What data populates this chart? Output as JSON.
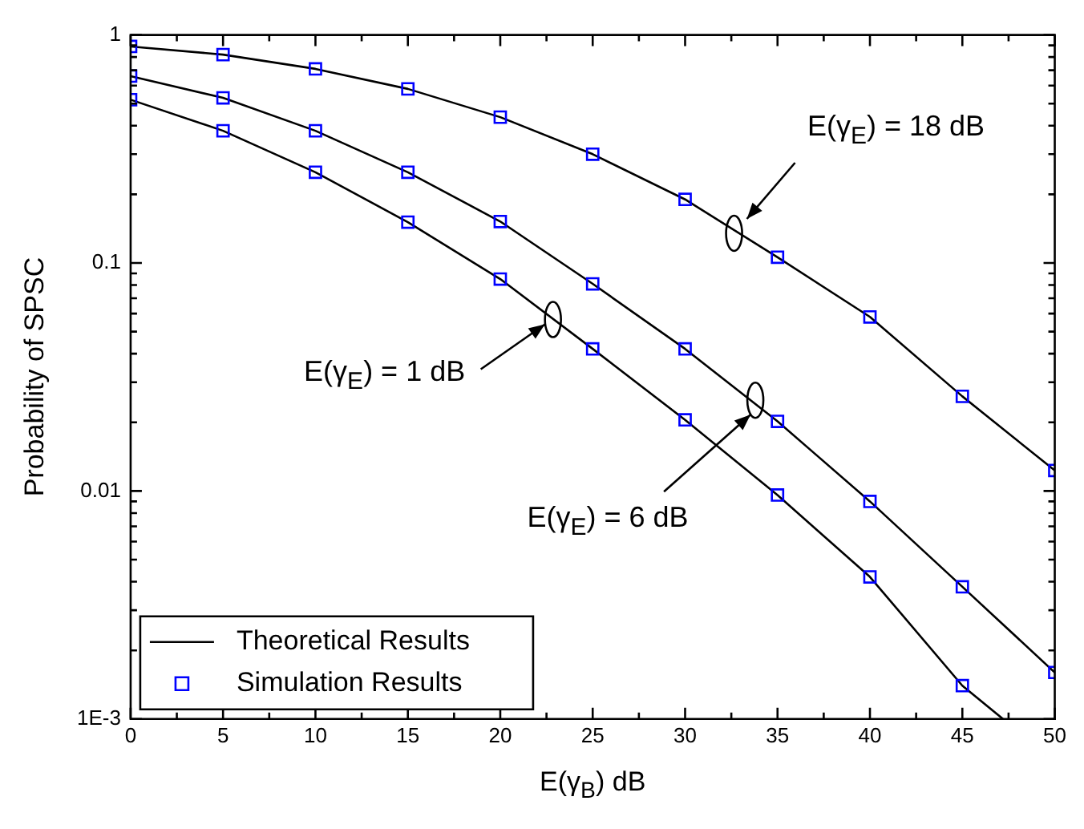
{
  "chart_data": {
    "type": "line",
    "xlabel": "E(γ$_{B}$) dB",
    "ylabel": "Probability of SPSC",
    "x": [
      0,
      5,
      10,
      15,
      20,
      25,
      30,
      35,
      40,
      45,
      50
    ],
    "log": "y",
    "xlim": [
      0,
      50
    ],
    "xticks": [
      0,
      5,
      10,
      15,
      20,
      25,
      30,
      35,
      40,
      45,
      50
    ],
    "ylim": [
      0.001,
      1
    ],
    "yticks": [
      {
        "value": 0.001,
        "label": "1E-3"
      },
      0.01,
      0.1,
      1
    ],
    "grid": false,
    "legend": "bottom left",
    "series": [
      {
        "name": "Theoretical Results",
        "type": "line",
        "marker": "none",
        "color": "#000000",
        "values": [
          0.89,
          0.82,
          0.71,
          0.58,
          0.436,
          0.3,
          0.19,
          0.106,
          0.058,
          0.026,
          0.0123
        ]
      },
      {
        "type": "line",
        "marker": "none",
        "color": "#000000",
        "values": [
          0.66,
          0.53,
          0.38,
          0.25,
          0.152,
          0.081,
          0.042,
          0.0202,
          0.009,
          0.0038,
          0.0016
        ]
      },
      {
        "type": "line",
        "marker": "none",
        "color": "#000000",
        "x": [
          0,
          5,
          10,
          15,
          20,
          25,
          30,
          35,
          40,
          45,
          47.2
        ],
        "values": [
          0.52,
          0.38,
          0.25,
          0.151,
          0.085,
          0.042,
          0.0205,
          0.0096,
          0.0042,
          0.0014,
          0.001
        ]
      },
      {
        "name": "Simulation Results",
        "type": "scatter",
        "marker": "square",
        "color": "#0000ff",
        "values": [
          0.89,
          0.82,
          0.71,
          0.58,
          0.436,
          0.3,
          0.19,
          0.106,
          0.058,
          0.026,
          0.0123
        ]
      },
      {
        "type": "scatter",
        "marker": "square",
        "color": "#0000ff",
        "values": [
          0.66,
          0.53,
          0.38,
          0.25,
          0.152,
          0.081,
          0.042,
          0.0202,
          0.009,
          0.0038,
          0.0016
        ]
      },
      {
        "type": "scatter",
        "marker": "square",
        "color": "#0000ff",
        "values": [
          0.52,
          0.38,
          0.25,
          0.151,
          0.085,
          0.042,
          0.0205,
          0.0096,
          0.0042,
          0.0014,
          null
        ]
      }
    ],
    "annotations": [
      "E(γ$_{E}$) = 18 dB",
      "E(γ$_{E}$) = 1 dB",
      "E(γ$_{E}$) = 6 dB"
    ]
  }
}
